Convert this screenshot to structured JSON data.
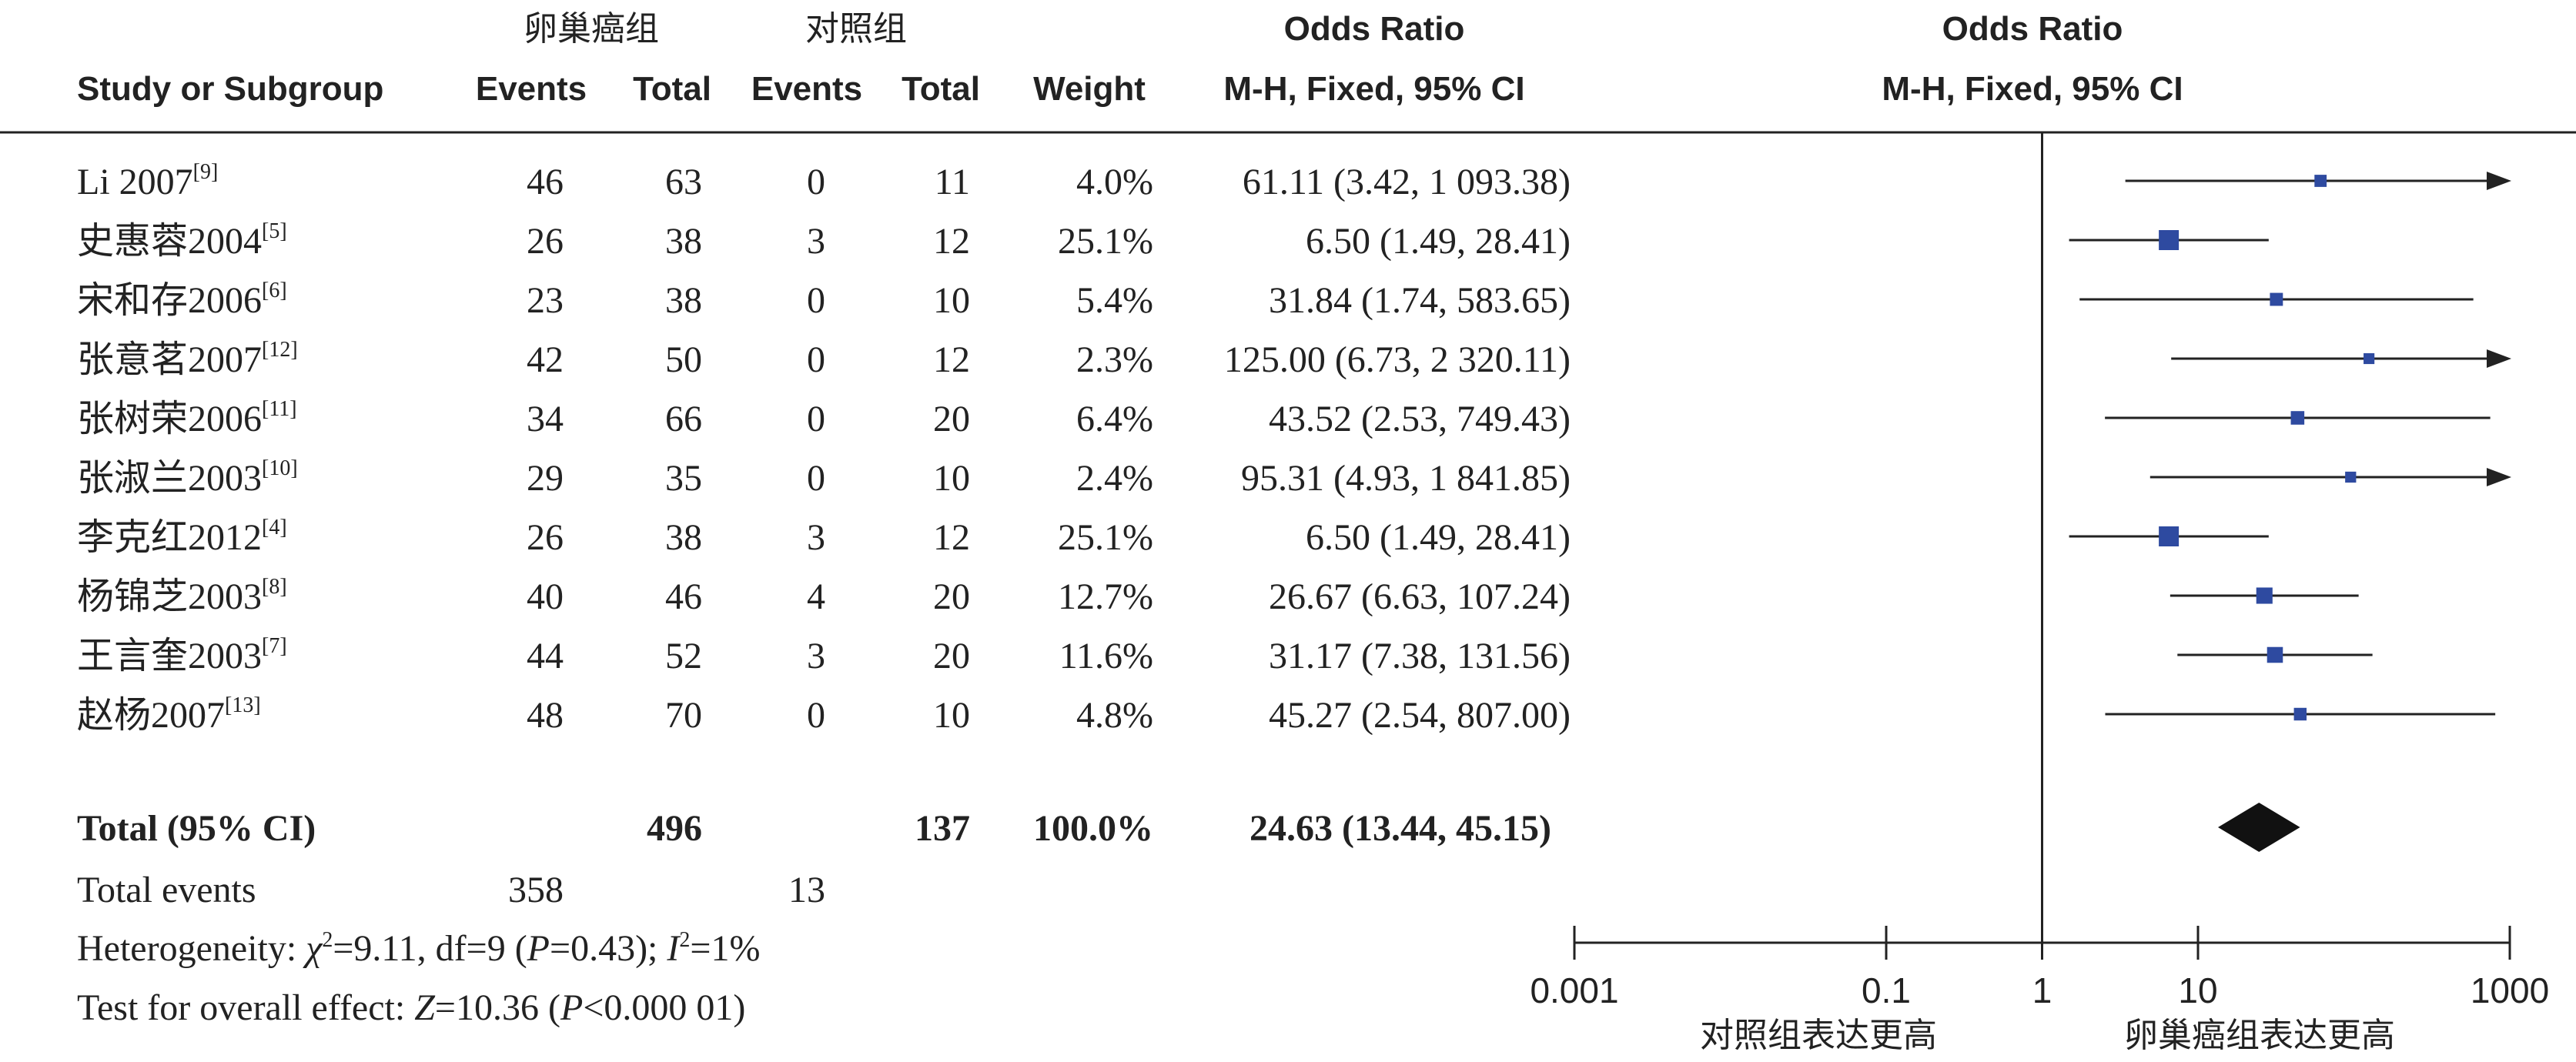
{
  "header": {
    "group1": "卵巢癌组",
    "group2": "对照组",
    "study": "Study or Subgroup",
    "events": "Events",
    "total": "Total",
    "weight": "Weight",
    "or_title": "Odds Ratio",
    "or_method": "M-H, Fixed, 95% CI"
  },
  "chart_data": {
    "type": "forest",
    "xscale": "log",
    "xlim": [
      0.001,
      1000
    ],
    "ticks": [
      "0.001",
      "0.1",
      "1",
      "10",
      "1000"
    ],
    "tick_values": [
      0.001,
      0.1,
      1,
      10,
      1000
    ],
    "xlabel_left": "对照组表达更高",
    "xlabel_right": "卵巢癌组表达更高",
    "studies": [
      {
        "name": "Li 2007",
        "ref": "[9]",
        "e1": "46",
        "t1": "63",
        "e2": "0",
        "t2": "11",
        "weight": "4.0%",
        "ci_text": "61.11 (3.42, 1 093.38)",
        "or": 61.11,
        "lo": 3.42,
        "hi": 1093.38,
        "w": 4.0
      },
      {
        "name": "史惠蓉2004",
        "ref": "[5]",
        "e1": "26",
        "t1": "38",
        "e2": "3",
        "t2": "12",
        "weight": "25.1%",
        "ci_text": "6.50 (1.49, 28.41)",
        "or": 6.5,
        "lo": 1.49,
        "hi": 28.41,
        "w": 25.1
      },
      {
        "name": "宋和存2006",
        "ref": "[6]",
        "e1": "23",
        "t1": "38",
        "e2": "0",
        "t2": "10",
        "weight": "5.4%",
        "ci_text": "31.84 (1.74, 583.65)",
        "or": 31.84,
        "lo": 1.74,
        "hi": 583.65,
        "w": 5.4
      },
      {
        "name": "张意茗2007",
        "ref": "[12]",
        "e1": "42",
        "t1": "50",
        "e2": "0",
        "t2": "12",
        "weight": "2.3%",
        "ci_text": "125.00 (6.73, 2 320.11)",
        "or": 125.0,
        "lo": 6.73,
        "hi": 2320.11,
        "w": 2.3
      },
      {
        "name": "张树荣2006",
        "ref": "[11]",
        "e1": "34",
        "t1": "66",
        "e2": "0",
        "t2": "20",
        "weight": "6.4%",
        "ci_text": "43.52 (2.53, 749.43)",
        "or": 43.52,
        "lo": 2.53,
        "hi": 749.43,
        "w": 6.4
      },
      {
        "name": "张淑兰2003",
        "ref": "[10]",
        "e1": "29",
        "t1": "35",
        "e2": "0",
        "t2": "10",
        "weight": "2.4%",
        "ci_text": "95.31 (4.93, 1 841.85)",
        "or": 95.31,
        "lo": 4.93,
        "hi": 1841.85,
        "w": 2.4
      },
      {
        "name": "李克红2012",
        "ref": "[4]",
        "e1": "26",
        "t1": "38",
        "e2": "3",
        "t2": "12",
        "weight": "25.1%",
        "ci_text": "6.50 (1.49, 28.41)",
        "or": 6.5,
        "lo": 1.49,
        "hi": 28.41,
        "w": 25.1
      },
      {
        "name": "杨锦芝2003",
        "ref": "[8]",
        "e1": "40",
        "t1": "46",
        "e2": "4",
        "t2": "20",
        "weight": "12.7%",
        "ci_text": "26.67 (6.63, 107.24)",
        "or": 26.67,
        "lo": 6.63,
        "hi": 107.24,
        "w": 12.7
      },
      {
        "name": "王言奎2003",
        "ref": "[7]",
        "e1": "44",
        "t1": "52",
        "e2": "3",
        "t2": "20",
        "weight": "11.6%",
        "ci_text": "31.17 (7.38, 131.56)",
        "or": 31.17,
        "lo": 7.38,
        "hi": 131.56,
        "w": 11.6
      },
      {
        "name": "赵杨2007",
        "ref": "[13]",
        "e1": "48",
        "t1": "70",
        "e2": "0",
        "t2": "10",
        "weight": "4.8%",
        "ci_text": "45.27 (2.54, 807.00)",
        "or": 45.27,
        "lo": 2.54,
        "hi": 807.0,
        "w": 4.8
      }
    ],
    "total": {
      "label": "Total (95% CI)",
      "t1": "496",
      "t2": "137",
      "weight": "100.0%",
      "ci_text": "24.63 (13.44, 45.15)",
      "or": 24.63,
      "lo": 13.44,
      "hi": 45.15
    },
    "total_events": {
      "label": "Total events",
      "e1": "358",
      "e2": "13"
    },
    "heterogeneity": {
      "label": "Heterogeneity: ",
      "chi_sym": "χ",
      "chi_rest": "=9.11, df=9 (",
      "p_sym": "P",
      "p_rest": "=0.43); ",
      "i_sym": "I",
      "i_rest": "=1%"
    },
    "overall": {
      "label": "Test for overall effect: ",
      "z_sym": "Z",
      "z_rest": "=10.36 (",
      "p_sym": "P",
      "p_rest": "<0.000 01)"
    }
  },
  "colors": {
    "marker": "#2e4aa0",
    "line": "#222222"
  }
}
